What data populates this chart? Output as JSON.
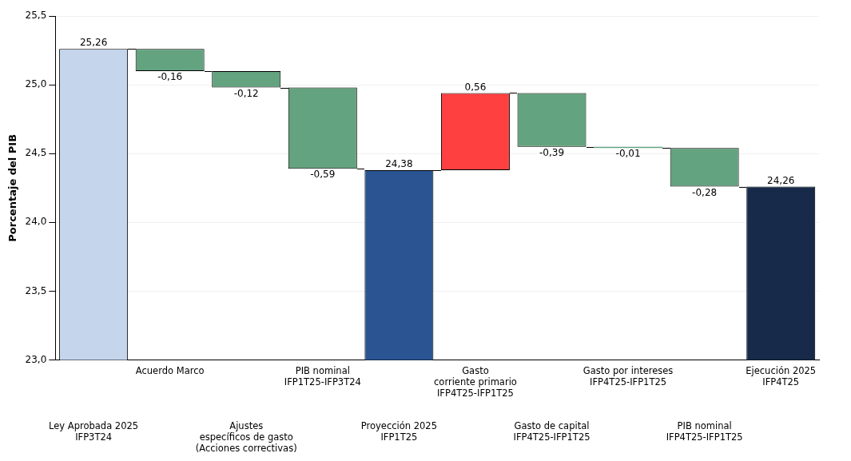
{
  "chart_data": {
    "type": "bar",
    "ylabel": "Porcentaje del PIB",
    "categories": [
      "Ley Aprobada 2025\nIFP3T24",
      "Acuerdo Marco",
      "Ajustes\nespecíficos de gasto\n(Acciones correctivas)",
      "PIB nominal\nIFP1T25-IFP3T24",
      "Proyección 2025\nIFP1T25",
      "Gasto\ncorriente primario\nIFP4T25-IFP1T25",
      "Gasto de capital\nIFP4T25-IFP1T25",
      "Gasto por intereses\nIFP4T25-IFP1T25",
      "PIB nominal\nIFP4T25-IFP1T25",
      "Ejecución 2025\nIFP4T25"
    ],
    "values": [
      25.26,
      -0.16,
      -0.12,
      -0.59,
      24.38,
      0.56,
      -0.39,
      -0.01,
      -0.28,
      24.26
    ],
    "base": [
      null,
      25.26,
      25.1,
      24.98,
      null,
      24.38,
      24.94,
      24.55,
      24.54,
      null
    ],
    "colors": [
      "#c5d5ec",
      "#64a37f",
      "#64a37f",
      "#64a37f",
      "#2a5592",
      "#ff4040",
      "#64a37f",
      "#64a37f",
      "#64a37f",
      "#172a4a"
    ],
    "value_labels": [
      "25,26",
      "-0,16",
      "-0,12",
      "-0,59",
      "24,38",
      "0,56",
      "-0,39",
      "-0,01",
      "-0,28",
      "24,26"
    ],
    "ylim": [
      23,
      25.5
    ],
    "yticks": [
      {
        "value": 23,
        "label": "23,0"
      },
      {
        "value": 23.5,
        "label": "23,5"
      },
      {
        "value": 24,
        "label": "24,0"
      },
      {
        "value": 24.5,
        "label": "24,5"
      },
      {
        "value": 25,
        "label": "25,0"
      },
      {
        "value": 25.5,
        "label": "25,5"
      }
    ],
    "grid": "y",
    "legend": false
  }
}
